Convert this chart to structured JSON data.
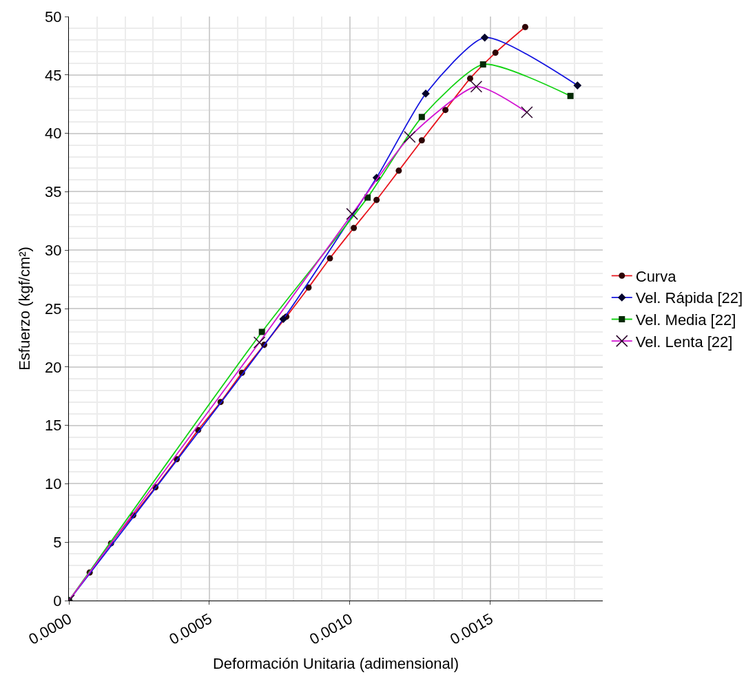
{
  "chart_data": {
    "type": "line",
    "xlabel": "Deformación Unitaria (adimensional)",
    "ylabel": "Esfuerzo (kgf/cm²)",
    "xlim": [
      0,
      0.0019
    ],
    "ylim": [
      0,
      50
    ],
    "xticks": [
      {
        "value": 0,
        "label": "0.0000"
      },
      {
        "value": 0.0005,
        "label": "0.0005"
      },
      {
        "value": 0.001,
        "label": "0.0010"
      },
      {
        "value": 0.0015,
        "label": "0.0015"
      }
    ],
    "yticks": [
      0,
      5,
      10,
      15,
      20,
      25,
      30,
      35,
      40,
      45,
      50
    ],
    "grid": true,
    "legend": "right",
    "series": [
      {
        "name": "Curva",
        "color": "#e8141c",
        "marker": "circle",
        "x": [
          0,
          7.4e-05,
          0.00015,
          0.000229,
          0.000308,
          0.000384,
          0.00046,
          0.00054,
          0.000616,
          0.000695,
          0.000774,
          0.000853,
          0.000929,
          0.001014,
          0.001095,
          0.001174,
          0.001256,
          0.00134,
          0.001428,
          0.001518,
          0.001624
        ],
        "values": [
          0,
          2.4,
          4.9,
          7.3,
          9.7,
          12.1,
          14.6,
          17.0,
          19.5,
          21.9,
          24.3,
          26.8,
          29.3,
          31.9,
          34.3,
          36.8,
          39.4,
          42.0,
          44.7,
          46.9,
          49.1
        ]
      },
      {
        "name": "Vel. Rápida [22]",
        "color": "#1414e0",
        "marker": "diamond",
        "x": [
          0,
          0.000763,
          0.001095,
          0.00127,
          0.00148,
          0.00181
        ],
        "values": [
          0,
          24.1,
          36.2,
          43.4,
          48.2,
          44.1
        ]
      },
      {
        "name": "Vel. Media [22]",
        "color": "#14d214",
        "marker": "square",
        "x": [
          0,
          0.000687,
          0.001063,
          0.001256,
          0.001474,
          0.001785
        ],
        "values": [
          0,
          23.0,
          34.5,
          41.4,
          45.9,
          43.2
        ]
      },
      {
        "name": "Vel. Lenta [22]",
        "color": "#d214d2",
        "marker": "cross",
        "x": [
          0,
          0.000678,
          0.001008,
          0.001213,
          0.00145,
          0.00163
        ],
        "values": [
          0,
          22.1,
          33.1,
          39.7,
          44.0,
          41.8
        ]
      }
    ]
  }
}
